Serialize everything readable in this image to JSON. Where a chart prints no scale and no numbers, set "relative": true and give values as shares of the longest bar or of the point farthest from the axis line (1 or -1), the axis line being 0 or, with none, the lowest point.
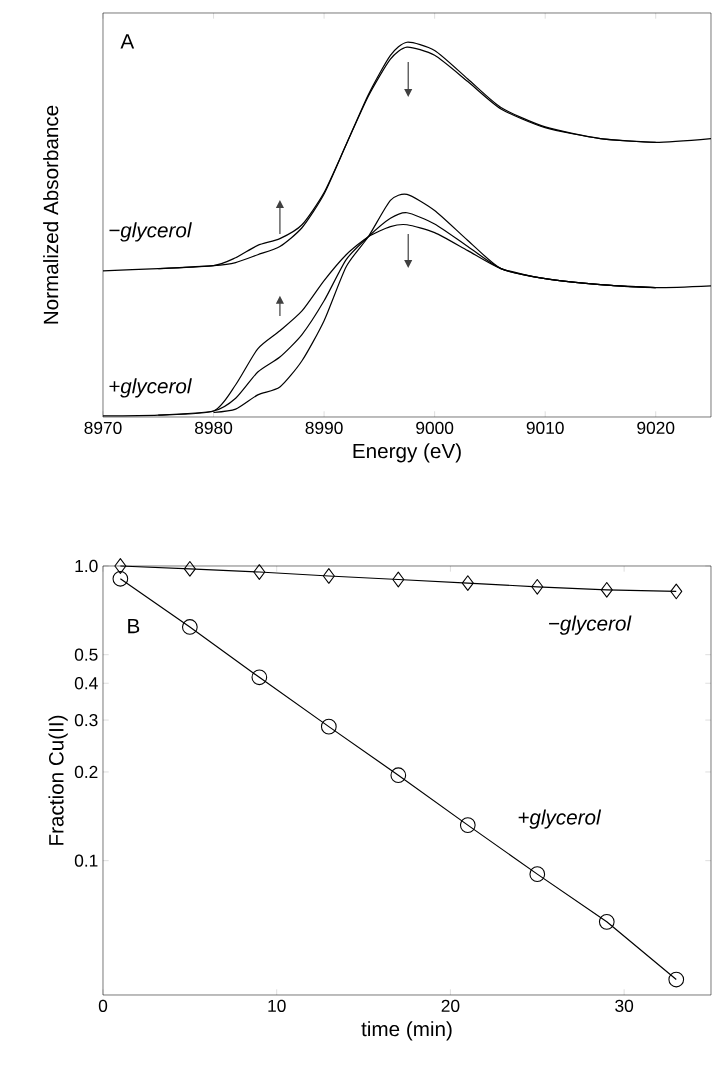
{
  "chart_data": [
    {
      "type": "line",
      "relative": true,
      "xlabel": "Energy (eV)",
      "ylabel": "Normalized Absorbance",
      "xlim": [
        8970,
        9025
      ],
      "xticks": [
        8970,
        8980,
        8990,
        9000,
        9010,
        9020
      ],
      "marker": "none",
      "line_style": "solid",
      "grid": false,
      "annotations": [
        "A",
        "−glycerol",
        "+glycerol"
      ],
      "x": [
        8970,
        8975,
        8980,
        8982,
        8984,
        8986,
        8988,
        8990,
        8992,
        8994,
        8996,
        8997.5,
        9000,
        9003,
        9006,
        9010,
        9015,
        9020,
        9025
      ],
      "series": [
        {
          "color": "#000000",
          "values": [
            0.39,
            0.396,
            0.404,
            0.425,
            0.458,
            0.476,
            0.513,
            0.599,
            0.727,
            0.856,
            0.955,
            0.987,
            0.965,
            0.895,
            0.822,
            0.772,
            0.743,
            0.733,
            0.743
          ]
        },
        {
          "color": "#000000",
          "values": [
            null,
            0.396,
            0.404,
            0.412,
            0.433,
            0.455,
            0.505,
            0.595,
            0.727,
            0.86,
            0.965,
            1.0,
            0.978,
            0.902,
            0.826,
            0.774,
            0.743,
            0.733,
            null
          ]
        },
        {
          "color": "#000000",
          "values": [
            0.003,
            0.005,
            0.016,
            0.086,
            0.182,
            0.23,
            0.283,
            0.364,
            0.433,
            0.481,
            0.508,
            0.513,
            0.492,
            0.444,
            0.396,
            0.369,
            0.353,
            0.345,
            0.35
          ]
        },
        {
          "color": "#000000",
          "values": [
            null,
            0.005,
            0.016,
            0.05,
            0.12,
            0.16,
            0.22,
            0.31,
            0.42,
            0.481,
            0.53,
            0.545,
            0.515,
            0.455,
            0.396,
            0.369,
            0.353,
            0.345,
            null
          ]
        },
        {
          "color": "#000000",
          "values": [
            null,
            null,
            0.012,
            0.021,
            0.059,
            0.08,
            0.15,
            0.257,
            0.401,
            0.481,
            0.578,
            0.594,
            0.551,
            0.471,
            0.396,
            0.369,
            0.353,
            0.345,
            null
          ]
        }
      ]
    },
    {
      "type": "line",
      "xlabel": "time (min)",
      "ylabel": "Fraction Cu(II)",
      "log": "y",
      "xlim": [
        0,
        35
      ],
      "ylim": [
        0.035,
        1
      ],
      "xticks": [
        0,
        10,
        20,
        30
      ],
      "yticks": [
        0.1,
        0.2,
        0.3,
        0.4,
        0.5,
        {
          "value": 1,
          "label": "1.0"
        }
      ],
      "line_style": "solid",
      "grid": false,
      "annotations": [
        "B"
      ],
      "x": [
        1,
        5,
        9,
        13,
        17,
        21,
        25,
        29,
        33
      ],
      "series": [
        {
          "name": "−glycerol",
          "color": "#000000",
          "marker": "diamond",
          "values": [
            1.0,
            0.978,
            0.954,
            0.925,
            0.9,
            0.875,
            0.85,
            0.83,
            0.82
          ]
        },
        {
          "name": "+glycerol",
          "color": "#000000",
          "marker": "circle",
          "values": [
            0.905,
            0.621,
            0.419,
            0.285,
            0.195,
            0.132,
            0.09,
            0.062,
            0.0395
          ]
        }
      ]
    }
  ]
}
